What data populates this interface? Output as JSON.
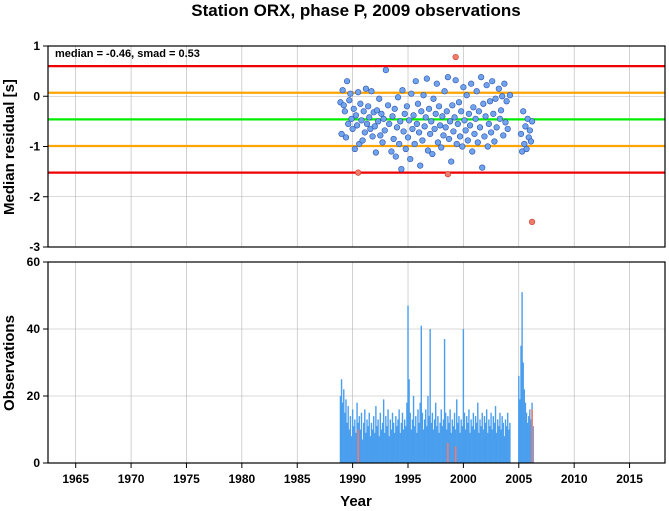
{
  "figure": {
    "title": "Station ORX, phase P, 2009 observations"
  },
  "chart_data": [
    {
      "type": "scatter",
      "ylabel": "Median residual [s]",
      "xlim": [
        1962.5,
        2018.2
      ],
      "ylim": [
        -3,
        1
      ],
      "yticks": [
        "1",
        "0",
        "-1",
        "-2",
        "-3"
      ],
      "grid": true,
      "annotation": "median = -0.46, smad = 0.53",
      "reference_lines": [
        {
          "name": "median",
          "value": -0.46,
          "color": "#00ee00"
        },
        {
          "name": "median+1smad",
          "value": 0.07,
          "color": "#ffa500"
        },
        {
          "name": "median-1smad",
          "value": -0.99,
          "color": "#ffa500"
        },
        {
          "name": "median+2smad",
          "value": 0.6,
          "color": "#ee0000"
        },
        {
          "name": "median-2smad",
          "value": -1.52,
          "color": "#ee0000"
        }
      ],
      "point_colors": {
        "normal": "#6fa3ee",
        "outlier": "#f27b6b"
      },
      "points": [
        [
          1988.9,
          -0.12
        ],
        [
          1989.0,
          -0.75
        ],
        [
          1989.1,
          0.12
        ],
        [
          1989.2,
          -0.18
        ],
        [
          1989.3,
          -0.3
        ],
        [
          1989.4,
          -0.82
        ],
        [
          1989.5,
          0.3
        ],
        [
          1989.6,
          -0.55
        ],
        [
          1989.7,
          -0.08
        ],
        [
          1989.8,
          0.05
        ],
        [
          1989.9,
          -0.45
        ],
        [
          1990.0,
          -0.65
        ],
        [
          1990.1,
          -0.25
        ],
        [
          1990.2,
          -1.05
        ],
        [
          1990.3,
          -0.38
        ],
        [
          1990.4,
          -0.58
        ],
        [
          1990.5,
          0.08
        ],
        [
          1990.6,
          -0.95
        ],
        [
          1990.7,
          -0.15
        ],
        [
          1990.8,
          -0.48
        ],
        [
          1990.9,
          -0.88
        ],
        [
          1991.0,
          -0.3
        ],
        [
          1991.1,
          -0.72
        ],
        [
          1991.2,
          0.15
        ],
        [
          1991.3,
          -0.55
        ],
        [
          1991.4,
          -0.2
        ],
        [
          1991.5,
          -0.42
        ],
        [
          1991.6,
          -0.65
        ],
        [
          1991.7,
          0.1
        ],
        [
          1991.8,
          -0.8
        ],
        [
          1991.9,
          -0.32
        ],
        [
          1992.0,
          -0.6
        ],
        [
          1992.1,
          -1.12
        ],
        [
          1992.2,
          -0.28
        ],
        [
          1992.3,
          -0.5
        ],
        [
          1992.4,
          -0.05
        ],
        [
          1992.5,
          -0.78
        ],
        [
          1992.6,
          -0.35
        ],
        [
          1992.7,
          -0.92
        ],
        [
          1992.8,
          -0.45
        ],
        [
          1992.9,
          -0.68
        ],
        [
          1993.0,
          0.52
        ],
        [
          1993.2,
          -0.18
        ],
        [
          1993.3,
          -0.55
        ],
        [
          1993.5,
          -1.1
        ],
        [
          1993.6,
          -0.4
        ],
        [
          1993.7,
          -0.85
        ],
        [
          1993.8,
          -0.25
        ],
        [
          1993.9,
          -1.2
        ],
        [
          1994.0,
          -0.62
        ],
        [
          1994.1,
          -0.02
        ],
        [
          1994.2,
          -0.95
        ],
        [
          1994.3,
          -0.5
        ],
        [
          1994.4,
          -1.45
        ],
        [
          1994.5,
          0.12
        ],
        [
          1994.6,
          -0.7
        ],
        [
          1994.7,
          -0.35
        ],
        [
          1994.8,
          -1.05
        ],
        [
          1994.9,
          -0.2
        ],
        [
          1995.0,
          -0.82
        ],
        [
          1995.1,
          -0.48
        ],
        [
          1995.2,
          -1.25
        ],
        [
          1995.3,
          0.05
        ],
        [
          1995.4,
          -0.65
        ],
        [
          1995.5,
          -0.38
        ],
        [
          1995.6,
          -0.95
        ],
        [
          1995.7,
          0.3
        ],
        [
          1995.8,
          -0.55
        ],
        [
          1995.9,
          -0.15
        ],
        [
          1996.0,
          -0.72
        ],
        [
          1996.1,
          -1.38
        ],
        [
          1996.2,
          -0.3
        ],
        [
          1996.3,
          -0.88
        ],
        [
          1996.4,
          0.02
        ],
        [
          1996.5,
          -0.6
        ],
        [
          1996.6,
          -0.42
        ],
        [
          1996.7,
          0.35
        ],
        [
          1996.8,
          -1.08
        ],
        [
          1996.9,
          -0.25
        ],
        [
          1997.0,
          -0.75
        ],
        [
          1997.1,
          -0.5
        ],
        [
          1997.2,
          -1.15
        ],
        [
          1997.3,
          -0.05
        ],
        [
          1997.4,
          -0.65
        ],
        [
          1997.5,
          -0.35
        ],
        [
          1997.6,
          0.25
        ],
        [
          1997.7,
          -0.92
        ],
        [
          1997.8,
          -0.2
        ],
        [
          1997.9,
          -0.58
        ],
        [
          1998.0,
          -1.02
        ],
        [
          1998.1,
          -0.4
        ],
        [
          1998.2,
          -0.78
        ],
        [
          1998.3,
          0.1
        ],
        [
          1998.4,
          -0.62
        ],
        [
          1998.5,
          -0.3
        ],
        [
          1998.6,
          0.38
        ],
        [
          1998.7,
          -0.85
        ],
        [
          1998.8,
          -0.5
        ],
        [
          1998.9,
          -1.3
        ],
        [
          1999.0,
          -0.18
        ],
        [
          1999.1,
          -0.7
        ],
        [
          1999.2,
          -0.42
        ],
        [
          1999.3,
          0.32
        ],
        [
          1999.4,
          -0.95
        ],
        [
          1999.5,
          -0.55
        ],
        [
          1999.6,
          -0.12
        ],
        [
          1999.7,
          -0.8
        ],
        [
          1999.8,
          -0.3
        ],
        [
          1999.9,
          -1.0
        ],
        [
          2000.0,
          0.18
        ],
        [
          2000.1,
          -0.48
        ],
        [
          2000.2,
          -0.68
        ],
        [
          2000.3,
          0.02
        ],
        [
          2000.4,
          -0.88
        ],
        [
          2000.5,
          -0.35
        ],
        [
          2000.6,
          -0.58
        ],
        [
          2000.7,
          0.25
        ],
        [
          2000.8,
          -1.1
        ],
        [
          2000.9,
          -0.22
        ],
        [
          2001.0,
          -0.75
        ],
        [
          2001.1,
          -0.45
        ],
        [
          2001.2,
          0.1
        ],
        [
          2001.3,
          -0.92
        ],
        [
          2001.4,
          -0.3
        ],
        [
          2001.5,
          -0.62
        ],
        [
          2001.6,
          0.38
        ],
        [
          2001.7,
          -1.42
        ],
        [
          2001.8,
          -0.15
        ],
        [
          2001.9,
          -0.8
        ],
        [
          2002.0,
          -0.4
        ],
        [
          2002.1,
          0.22
        ],
        [
          2002.2,
          -1.0
        ],
        [
          2002.3,
          -0.55
        ],
        [
          2002.4,
          -0.1
        ],
        [
          2002.5,
          -0.72
        ],
        [
          2002.6,
          0.3
        ],
        [
          2002.7,
          -0.35
        ],
        [
          2002.8,
          -0.9
        ],
        [
          2002.9,
          -0.05
        ],
        [
          2003.0,
          -0.62
        ],
        [
          2003.2,
          0.15
        ],
        [
          2003.3,
          -0.45
        ],
        [
          2003.4,
          -0.28
        ],
        [
          2003.5,
          0.0
        ],
        [
          2003.6,
          -0.78
        ],
        [
          2003.7,
          0.25
        ],
        [
          2003.8,
          -0.52
        ],
        [
          2003.9,
          -0.1
        ],
        [
          2004.0,
          -0.65
        ],
        [
          2004.2,
          0.02
        ],
        [
          2005.2,
          -0.75
        ],
        [
          2005.3,
          -1.1
        ],
        [
          2005.4,
          -0.3
        ],
        [
          2005.5,
          -0.95
        ],
        [
          2005.6,
          -0.6
        ],
        [
          2005.7,
          -1.05
        ],
        [
          2005.8,
          -0.45
        ],
        [
          2005.9,
          -0.82
        ],
        [
          2006.0,
          -0.68
        ],
        [
          2006.1,
          -0.9
        ],
        [
          2006.2,
          -0.5
        ]
      ],
      "outliers": [
        [
          1990.5,
          -1.52
        ],
        [
          1998.6,
          -1.55
        ],
        [
          1999.3,
          0.78
        ],
        [
          2006.2,
          -2.5
        ]
      ]
    },
    {
      "type": "bar",
      "ylabel": "Observations",
      "xlabel": "Year",
      "xlim": [
        1962.5,
        2018.2
      ],
      "ylim": [
        0,
        60
      ],
      "yticks": [
        "60",
        "40",
        "20",
        "0"
      ],
      "xticks": [
        "1965",
        "1970",
        "1975",
        "1980",
        "1985",
        "1990",
        "1995",
        "2000",
        "2005",
        "2010",
        "2015"
      ],
      "grid": true,
      "colors": {
        "normal": "#4a9eee",
        "outlier": "#f27b6b"
      },
      "bars": [
        [
          1988.9,
          20
        ],
        [
          1989.0,
          25
        ],
        [
          1989.1,
          18
        ],
        [
          1989.2,
          22
        ],
        [
          1989.3,
          15
        ],
        [
          1989.4,
          19
        ],
        [
          1989.5,
          12
        ],
        [
          1989.6,
          17
        ],
        [
          1989.7,
          10
        ],
        [
          1989.8,
          14
        ],
        [
          1989.9,
          8
        ],
        [
          1990.0,
          16
        ],
        [
          1990.1,
          11
        ],
        [
          1990.2,
          13
        ],
        [
          1990.3,
          9
        ],
        [
          1990.4,
          18
        ],
        [
          1990.5,
          12
        ],
        [
          1990.6,
          14
        ],
        [
          1990.7,
          10
        ],
        [
          1990.8,
          15
        ],
        [
          1990.9,
          7
        ],
        [
          1991.0,
          12
        ],
        [
          1991.1,
          16
        ],
        [
          1991.2,
          9
        ],
        [
          1991.3,
          13
        ],
        [
          1991.4,
          11
        ],
        [
          1991.5,
          15
        ],
        [
          1991.6,
          8
        ],
        [
          1991.7,
          12
        ],
        [
          1991.8,
          10
        ],
        [
          1991.9,
          14
        ],
        [
          1992.0,
          9
        ],
        [
          1992.1,
          17
        ],
        [
          1992.2,
          11
        ],
        [
          1992.3,
          13
        ],
        [
          1992.4,
          8
        ],
        [
          1992.5,
          15
        ],
        [
          1992.6,
          10
        ],
        [
          1992.7,
          12
        ],
        [
          1992.8,
          19
        ],
        [
          1992.9,
          9
        ],
        [
          1993.0,
          14
        ],
        [
          1993.1,
          11
        ],
        [
          1993.2,
          16
        ],
        [
          1993.3,
          8
        ],
        [
          1993.4,
          13
        ],
        [
          1993.5,
          10
        ],
        [
          1993.6,
          15
        ],
        [
          1993.7,
          12
        ],
        [
          1993.8,
          9
        ],
        [
          1993.9,
          14
        ],
        [
          1994.0,
          11
        ],
        [
          1994.1,
          13
        ],
        [
          1994.2,
          16
        ],
        [
          1994.3,
          9
        ],
        [
          1994.4,
          12
        ],
        [
          1994.5,
          15
        ],
        [
          1994.6,
          10
        ],
        [
          1994.7,
          13
        ],
        [
          1994.8,
          11
        ],
        [
          1994.9,
          18
        ],
        [
          1995.0,
          47
        ],
        [
          1995.1,
          25
        ],
        [
          1995.2,
          15
        ],
        [
          1995.3,
          10
        ],
        [
          1995.4,
          13
        ],
        [
          1995.5,
          20
        ],
        [
          1995.6,
          11
        ],
        [
          1995.7,
          14
        ],
        [
          1995.8,
          9
        ],
        [
          1995.9,
          16
        ],
        [
          1996.0,
          12
        ],
        [
          1996.1,
          18
        ],
        [
          1996.2,
          41
        ],
        [
          1996.3,
          15
        ],
        [
          1996.4,
          10
        ],
        [
          1996.5,
          13
        ],
        [
          1996.6,
          16
        ],
        [
          1996.7,
          11
        ],
        [
          1996.8,
          20
        ],
        [
          1996.9,
          14
        ],
        [
          1997.0,
          40
        ],
        [
          1997.1,
          12
        ],
        [
          1997.2,
          15
        ],
        [
          1997.3,
          10
        ],
        [
          1997.4,
          13
        ],
        [
          1997.5,
          18
        ],
        [
          1997.6,
          11
        ],
        [
          1997.7,
          14
        ],
        [
          1997.8,
          9
        ],
        [
          1997.9,
          12
        ],
        [
          1998.0,
          16
        ],
        [
          1998.1,
          11
        ],
        [
          1998.2,
          13
        ],
        [
          1998.3,
          37
        ],
        [
          1998.4,
          15
        ],
        [
          1998.5,
          10
        ],
        [
          1998.6,
          14
        ],
        [
          1998.7,
          12
        ],
        [
          1998.8,
          16
        ],
        [
          1998.9,
          9
        ],
        [
          1999.0,
          13
        ],
        [
          1999.1,
          11
        ],
        [
          1999.2,
          15
        ],
        [
          1999.3,
          10
        ],
        [
          1999.4,
          19
        ],
        [
          1999.5,
          12
        ],
        [
          1999.6,
          14
        ],
        [
          1999.7,
          9
        ],
        [
          1999.8,
          13
        ],
        [
          1999.9,
          11
        ],
        [
          2000.0,
          40
        ],
        [
          2000.1,
          15
        ],
        [
          2000.2,
          10
        ],
        [
          2000.3,
          14
        ],
        [
          2000.4,
          12
        ],
        [
          2000.5,
          16
        ],
        [
          2000.6,
          9
        ],
        [
          2000.7,
          13
        ],
        [
          2000.8,
          11
        ],
        [
          2000.9,
          15
        ],
        [
          2001.0,
          10
        ],
        [
          2001.1,
          14
        ],
        [
          2001.2,
          12
        ],
        [
          2001.3,
          18
        ],
        [
          2001.4,
          9
        ],
        [
          2001.5,
          13
        ],
        [
          2001.6,
          11
        ],
        [
          2001.7,
          15
        ],
        [
          2001.8,
          10
        ],
        [
          2001.9,
          14
        ],
        [
          2002.0,
          12
        ],
        [
          2002.1,
          16
        ],
        [
          2002.2,
          9
        ],
        [
          2002.3,
          13
        ],
        [
          2002.4,
          11
        ],
        [
          2002.5,
          15
        ],
        [
          2002.6,
          10
        ],
        [
          2002.7,
          14
        ],
        [
          2002.8,
          12
        ],
        [
          2002.9,
          17
        ],
        [
          2003.0,
          9
        ],
        [
          2003.1,
          13
        ],
        [
          2003.2,
          11
        ],
        [
          2003.3,
          15
        ],
        [
          2003.4,
          10
        ],
        [
          2003.5,
          14
        ],
        [
          2003.6,
          12
        ],
        [
          2003.7,
          8
        ],
        [
          2003.8,
          13
        ],
        [
          2003.9,
          11
        ],
        [
          2004.0,
          15
        ],
        [
          2004.1,
          10
        ],
        [
          2004.2,
          12
        ],
        [
          2005.0,
          26
        ],
        [
          2005.1,
          19
        ],
        [
          2005.2,
          35
        ],
        [
          2005.3,
          51
        ],
        [
          2005.4,
          30
        ],
        [
          2005.5,
          22
        ],
        [
          2005.6,
          18
        ],
        [
          2005.7,
          15
        ],
        [
          2005.8,
          12
        ],
        [
          2005.9,
          14
        ],
        [
          2006.0,
          16
        ],
        [
          2006.1,
          13
        ],
        [
          2006.2,
          18
        ],
        [
          2006.3,
          11
        ]
      ],
      "outlier_bars": [
        [
          1990.5,
          10
        ],
        [
          1998.6,
          6
        ],
        [
          1999.3,
          5
        ],
        [
          2006.2,
          16
        ]
      ]
    }
  ]
}
